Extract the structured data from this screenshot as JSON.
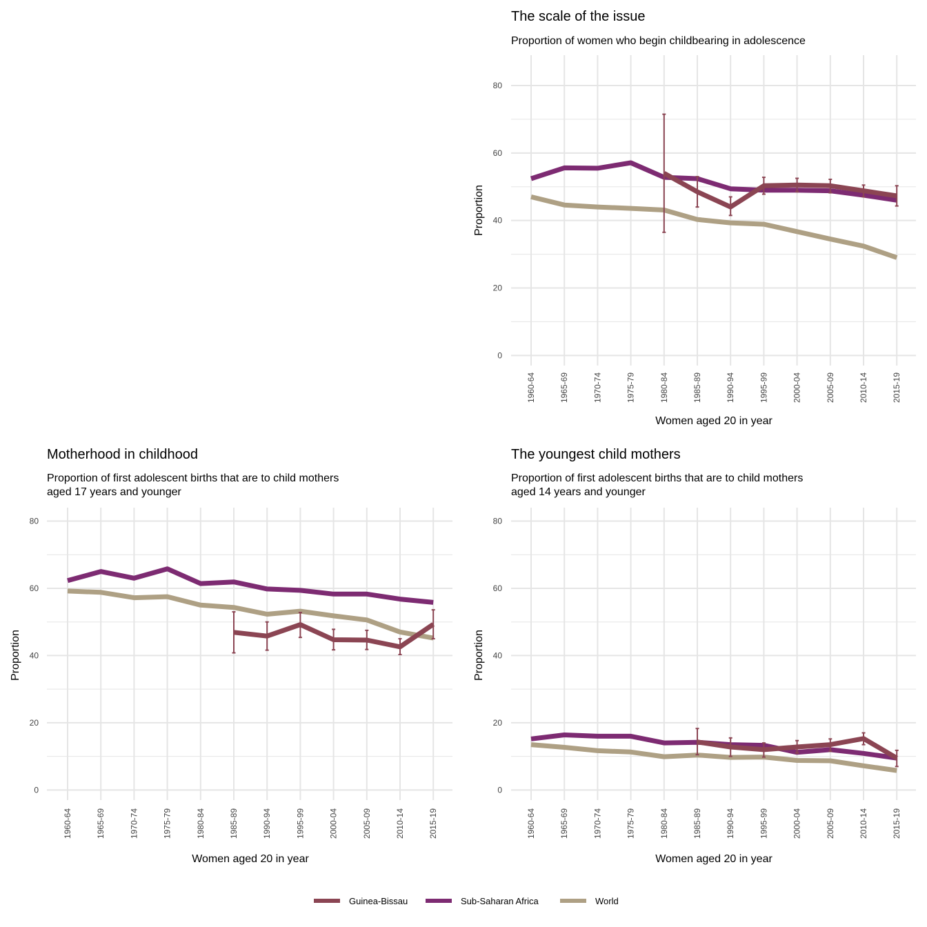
{
  "colors": {
    "guinea_bissau": "#8b4553",
    "sub_saharan_africa": "#7d2b72",
    "world": "#aea084",
    "grid": "#e5e5e5"
  },
  "legend": {
    "items": [
      {
        "label": "Guinea-Bissau",
        "series": "guinea_bissau"
      },
      {
        "label": "Sub-Saharan Africa",
        "series": "sub_saharan_africa"
      },
      {
        "label": "World",
        "series": "world"
      }
    ]
  },
  "chart_data": [
    {
      "id": "scale",
      "type": "line",
      "title": "The scale of the issue",
      "subtitle": [
        "Proportion of women who begin childbearing in adolescence"
      ],
      "xlabel": "Women aged 20 in year",
      "ylabel": "Proportion",
      "ylim": [
        -3,
        89
      ],
      "yticks": [
        0,
        20,
        40,
        60,
        80
      ],
      "categories": [
        "1960-64",
        "1965-69",
        "1970-74",
        "1975-79",
        "1980-84",
        "1985-89",
        "1990-94",
        "1995-99",
        "2000-04",
        "2005-09",
        "2010-14",
        "2015-19"
      ],
      "series": [
        {
          "key": "world",
          "name": "World",
          "values": [
            47,
            44.6,
            44,
            43.6,
            43.1,
            40.3,
            39.3,
            38.9,
            36.7,
            34.5,
            32.4,
            29
          ]
        },
        {
          "key": "sub_saharan_africa",
          "name": "Sub-Saharan Africa",
          "values": [
            52.4,
            55.6,
            55.5,
            57.1,
            52.8,
            52.4,
            49.4,
            49,
            49,
            48.8,
            47.5,
            46
          ]
        },
        {
          "key": "guinea_bissau",
          "name": "Guinea-Bissau",
          "values": [
            null,
            null,
            null,
            null,
            54,
            48.5,
            44,
            50.3,
            50.5,
            50.3,
            48.8,
            47.3
          ],
          "errors": [
            null,
            null,
            null,
            null,
            [
              36.5,
              71.5
            ],
            [
              44,
              53
            ],
            [
              41.5,
              47
            ],
            [
              47.8,
              52.8
            ],
            [
              48.5,
              52.5
            ],
            [
              48.2,
              52.2
            ],
            [
              47,
              50.5
            ],
            [
              44.3,
              50.3
            ]
          ]
        }
      ]
    },
    {
      "id": "motherhood",
      "type": "line",
      "title": "Motherhood in childhood",
      "subtitle": [
        "Proportion of first adolescent births that are to child mothers",
        "aged 17 years and younger"
      ],
      "xlabel": "Women aged 20 in year",
      "ylabel": "Proportion",
      "ylim": [
        -3,
        84
      ],
      "yticks": [
        0,
        20,
        40,
        60,
        80
      ],
      "categories": [
        "1960-64",
        "1965-69",
        "1970-74",
        "1975-79",
        "1980-84",
        "1985-89",
        "1990-94",
        "1995-99",
        "2000-04",
        "2005-09",
        "2010-14",
        "2015-19"
      ],
      "series": [
        {
          "key": "world",
          "name": "World",
          "values": [
            59.2,
            58.8,
            57.2,
            57.5,
            55,
            54.3,
            52.3,
            53.2,
            51.8,
            50.6,
            47,
            45.2
          ]
        },
        {
          "key": "sub_saharan_africa",
          "name": "Sub-Saharan Africa",
          "values": [
            62.3,
            65,
            63,
            65.8,
            61.4,
            61.9,
            59.8,
            59.4,
            58.3,
            58.3,
            56.8,
            55.8
          ]
        },
        {
          "key": "guinea_bissau",
          "name": "Guinea-Bissau",
          "values": [
            null,
            null,
            null,
            null,
            null,
            46.9,
            45.8,
            49.2,
            44.7,
            44.6,
            42.6,
            49.3
          ],
          "errors": [
            null,
            null,
            null,
            null,
            null,
            [
              40.8,
              53
            ],
            [
              41.6,
              50
            ],
            [
              45.4,
              52.8
            ],
            [
              41.7,
              47.8
            ],
            [
              41.8,
              47.5
            ],
            [
              40.3,
              45
            ],
            [
              45,
              53.6
            ]
          ]
        }
      ]
    },
    {
      "id": "youngest",
      "type": "line",
      "title": "The youngest child mothers",
      "subtitle": [
        "Proportion of first adolescent births that are to child mothers",
        "aged 14 years and younger"
      ],
      "xlabel": "Women aged 20 in year",
      "ylabel": "Proportion",
      "ylim": [
        -3,
        84
      ],
      "yticks": [
        0,
        20,
        40,
        60,
        80
      ],
      "categories": [
        "1960-64",
        "1965-69",
        "1970-74",
        "1975-79",
        "1980-84",
        "1985-89",
        "1990-94",
        "1995-99",
        "2000-04",
        "2005-09",
        "2010-14",
        "2015-19"
      ],
      "series": [
        {
          "key": "world",
          "name": "World",
          "values": [
            13.5,
            12.7,
            11.7,
            11.3,
            9.9,
            10.4,
            9.7,
            9.8,
            8.8,
            8.7,
            7.2,
            5.8
          ]
        },
        {
          "key": "sub_saharan_africa",
          "name": "Sub-Saharan Africa",
          "values": [
            15.2,
            16.4,
            16,
            16,
            14,
            14.2,
            13.5,
            13.3,
            11.2,
            12,
            10.9,
            9.5
          ]
        },
        {
          "key": "guinea_bissau",
          "name": "Guinea-Bissau",
          "values": [
            null,
            null,
            null,
            null,
            null,
            14.3,
            12.8,
            12,
            12.8,
            13.5,
            15.3,
            9.5
          ],
          "errors": [
            null,
            null,
            null,
            null,
            null,
            [
              10.5,
              18.3
            ],
            [
              10,
              15.5
            ],
            [
              9.8,
              14
            ],
            [
              11,
              14.7
            ],
            [
              11.5,
              15.2
            ],
            [
              13.5,
              17
            ],
            [
              7,
              11.8
            ]
          ]
        }
      ]
    }
  ]
}
